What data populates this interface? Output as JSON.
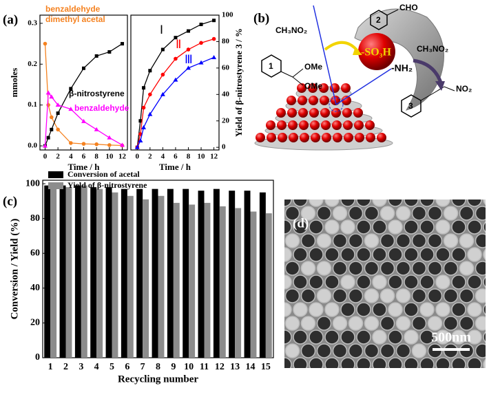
{
  "chart_data": [
    {
      "type": "line",
      "panel_label": "(a)",
      "x_label": "Time / h",
      "y_label": "mmoles",
      "x": [
        0,
        0.5,
        1,
        2,
        4,
        6,
        8,
        10,
        12
      ],
      "xlim": [
        -0.8,
        12.8
      ],
      "ylim": [
        -0.01,
        0.32
      ],
      "xticks": [
        0,
        2,
        4,
        6,
        8,
        10,
        12
      ],
      "yticks": [
        {
          "value": 0,
          "label": "0.0"
        },
        0.1,
        0.2,
        0.3
      ],
      "y_axis_side": "left",
      "series": [
        {
          "name": "benzaldehyde dimethyl acetal",
          "color": "#f58220",
          "marker": "circle",
          "values": [
            0.25,
            0.1,
            0.07,
            0.04,
            0.007,
            0.005,
            0.004,
            0.002,
            0.001
          ]
        },
        {
          "name": "β-nitrostyrene",
          "color": "#000000",
          "marker": "square",
          "values": [
            0,
            0.02,
            0.04,
            0.08,
            0.14,
            0.19,
            0.22,
            0.23,
            0.25
          ]
        },
        {
          "name": "benzaldehyde",
          "color": "#ff00ff",
          "marker": "triangle",
          "values": [
            0,
            0.13,
            0.12,
            0.1,
            0.09,
            0.06,
            0.04,
            0.02,
            0.002
          ]
        }
      ]
    },
    {
      "type": "line",
      "x_label": "Time / h",
      "y_label": "Yield of β-nitrostyrene 3 / %",
      "x": [
        0,
        0.5,
        1,
        2,
        4,
        6,
        8,
        10,
        12
      ],
      "xlim": [
        -1,
        12.8
      ],
      "ylim": [
        -2,
        100
      ],
      "xticks": [
        0,
        2,
        4,
        6,
        8,
        10,
        12
      ],
      "yticks": [
        0,
        20,
        40,
        60,
        80,
        100
      ],
      "y_axis_side": "right",
      "series": [
        {
          "name": "Ⅰ",
          "color": "#000000",
          "marker": "square",
          "values": [
            0,
            20,
            45,
            58,
            74,
            83,
            88,
            93,
            96
          ]
        },
        {
          "name": "Ⅱ",
          "color": "#ff0000",
          "marker": "circle",
          "values": [
            0,
            10,
            30,
            40,
            55,
            67,
            74,
            79,
            82
          ]
        },
        {
          "name": "Ⅲ",
          "color": "#0000ff",
          "marker": "triangle",
          "values": [
            0,
            5,
            15,
            25,
            40,
            51,
            60,
            64,
            68
          ]
        }
      ]
    },
    {
      "type": "bar",
      "panel_label": "(c)",
      "x_label": "Recycling number",
      "y_label": "Conversion / Yield (%)",
      "categories": [
        "1",
        "2",
        "3",
        "4",
        "5",
        "6",
        "7",
        "8",
        "9",
        "10",
        "11",
        "12",
        "13",
        "14",
        "15"
      ],
      "ylim": [
        0,
        102
      ],
      "yticks": [
        0,
        20,
        40,
        60,
        80,
        100
      ],
      "legend": "upper left",
      "series": [
        {
          "name": "Conversion of acetal",
          "color": "#000000",
          "values": [
            99,
            99,
            99,
            98,
            98,
            97,
            97,
            97,
            97,
            97,
            96,
            97,
            96,
            96,
            95
          ]
        },
        {
          "name": "Yield of β-nitrostyrene",
          "color": "#8c8c8c",
          "values": [
            99,
            98,
            99,
            97,
            95,
            93,
            91,
            93,
            89,
            88,
            89,
            87,
            86,
            84,
            83
          ]
        }
      ]
    }
  ],
  "diagram": {
    "panel_label": "(b)",
    "labels": [
      "CH₃NO₂",
      "OMe",
      "OMe",
      "1",
      "2",
      "CHO",
      "-SO₃H",
      "CH₃NO₂",
      "-NH₂",
      "NO₂",
      "3"
    ]
  },
  "image": {
    "panel_label": "(d)",
    "scale_bar": "500nm"
  }
}
